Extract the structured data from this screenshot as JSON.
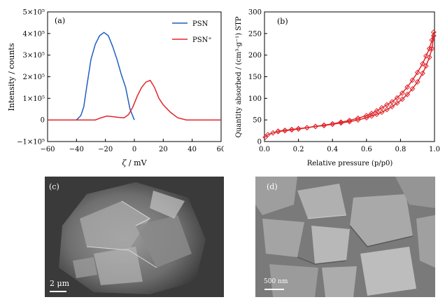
{
  "chart_data": [
    {
      "type": "line",
      "panel_label": "(a)",
      "xlabel_symbol": "ζ",
      "xlabel_unit": " / mV",
      "ylabel": "Intensity / counts",
      "xlim": [
        -60,
        60
      ],
      "ylim": [
        -100000,
        500000
      ],
      "x_ticks": [
        "−60",
        "−40",
        "−20",
        "0",
        "20",
        "40",
        "60"
      ],
      "y_ticks": [
        "−1×10⁵",
        "0",
        "1×10⁵",
        "2×10⁵",
        "3×10⁵",
        "4×10⁵",
        "5×10⁵"
      ],
      "legend_position": "top-right",
      "series": [
        {
          "name": "PSN",
          "color": "#1f5fbf",
          "x": [
            -40,
            -37,
            -35,
            -33,
            -30,
            -27,
            -24,
            -21,
            -18,
            -15,
            -12,
            -9,
            -6,
            -3,
            0
          ],
          "y": [
            0,
            20000,
            60000,
            150000,
            280000,
            350000,
            390000,
            405000,
            390000,
            340000,
            280000,
            210000,
            150000,
            50000,
            0
          ]
        },
        {
          "name": "PSN⁺",
          "color": "#e0262c",
          "x": [
            -60,
            -27,
            -23,
            -19,
            -15,
            -11,
            -7,
            -4,
            -1,
            2,
            5,
            8,
            11,
            14,
            17,
            20,
            25,
            30,
            36,
            60
          ],
          "y": [
            0,
            0,
            10000,
            18000,
            15000,
            12000,
            10000,
            25000,
            60000,
            110000,
            150000,
            175000,
            183000,
            150000,
            100000,
            70000,
            35000,
            10000,
            0,
            0
          ]
        }
      ]
    },
    {
      "type": "line",
      "panel_label": "(b)",
      "xlabel": "Relative pressure (p/p0)",
      "ylabel": "Quantity absorbed / (cm³·g⁻¹) STP",
      "xlim": [
        0,
        1.0
      ],
      "ylim": [
        0,
        300
      ],
      "x_ticks": [
        "0.0",
        "0.2",
        "0.4",
        "0.6",
        "0.8",
        "1.0"
      ],
      "y_ticks": [
        "0",
        "50",
        "100",
        "150",
        "200",
        "250",
        "300"
      ],
      "series": [
        {
          "name": "",
          "color": "#e0262c",
          "marker": "diamond",
          "x": [
            0.005,
            0.02,
            0.05,
            0.08,
            0.12,
            0.16,
            0.2,
            0.25,
            0.3,
            0.35,
            0.4,
            0.45,
            0.5,
            0.55,
            0.6,
            0.63,
            0.66,
            0.69,
            0.72,
            0.75,
            0.78,
            0.81,
            0.84,
            0.87,
            0.9,
            0.93,
            0.95,
            0.97,
            0.985,
            0.995
          ],
          "y": [
            10,
            16,
            20,
            23,
            25,
            27,
            29,
            32,
            35,
            37,
            40,
            43,
            46,
            50,
            55,
            59,
            63,
            68,
            74,
            81,
            89,
            98,
            109,
            122,
            138,
            158,
            175,
            195,
            215,
            245
          ]
        },
        {
          "name": "",
          "color": "#e0262c",
          "marker": "diamond",
          "x": [
            0.995,
            0.985,
            0.97,
            0.95,
            0.93,
            0.9,
            0.87,
            0.84,
            0.81,
            0.78,
            0.75,
            0.72,
            0.69,
            0.66,
            0.63,
            0.6,
            0.55,
            0.5,
            0.45,
            0.4,
            0.35,
            0.3,
            0.25,
            0.2,
            0.16,
            0.12,
            0.08
          ],
          "y": [
            253,
            235,
            215,
            198,
            180,
            160,
            142,
            126,
            112,
            101,
            92,
            85,
            78,
            71,
            65,
            60,
            54,
            49,
            45,
            41,
            38,
            35,
            32,
            30,
            28,
            26,
            24
          ]
        }
      ]
    }
  ],
  "images": [
    {
      "panel_label": "(c)",
      "scale_bar": "2 μm"
    },
    {
      "panel_label": "(d)",
      "scale_bar": "500 nm"
    }
  ]
}
